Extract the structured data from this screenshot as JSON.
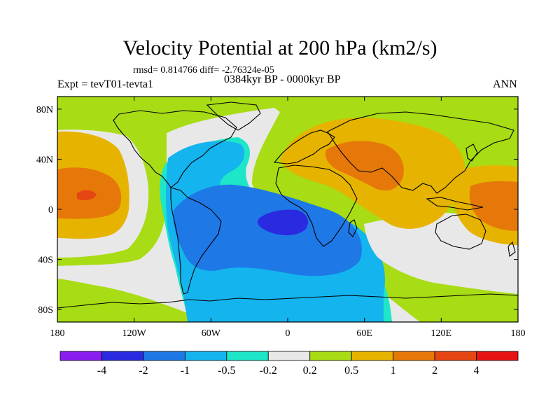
{
  "title": "Velocity Potential at 200 hPa (km2/s)",
  "stats_line": "rmsd= 0.814766 diff= -2.76324e-05",
  "period_line": "0384kyr BP - 0000kyr BP",
  "experiment_label": "Expt = tevT01-tevta1",
  "season_label": "ANN",
  "chart_data": {
    "type": "contour-map",
    "title": "Velocity Potential at 200 hPa (km2/s)",
    "xlim": [
      -180,
      180
    ],
    "ylim": [
      -90,
      90
    ],
    "x_ticks": [
      {
        "value": -180,
        "label": "180"
      },
      {
        "value": -120,
        "label": "120W"
      },
      {
        "value": -60,
        "label": "60W"
      },
      {
        "value": 0,
        "label": "0"
      },
      {
        "value": 60,
        "label": "60E"
      },
      {
        "value": 120,
        "label": "120E"
      },
      {
        "value": 180,
        "label": "180"
      }
    ],
    "y_ticks": [
      {
        "value": 80,
        "label": "80N"
      },
      {
        "value": 40,
        "label": "40N"
      },
      {
        "value": 0,
        "label": "0"
      },
      {
        "value": -40,
        "label": "40S"
      },
      {
        "value": -80,
        "label": "80S"
      }
    ],
    "contour_levels": [
      "-4",
      "-2",
      "-1",
      "-0.5",
      "-0.2",
      "0.2",
      "0.5",
      "1",
      "2",
      "4"
    ],
    "colorbar_colors": [
      "#8a1ef0",
      "#2a2ae0",
      "#1e78e6",
      "#14b4ee",
      "#1ee6c8",
      "#e8e8e8",
      "#a8dc14",
      "#e6b400",
      "#e6780a",
      "#e64614",
      "#e61414"
    ],
    "regions": [
      {
        "name": "background",
        "level": "0.2 to 0.5",
        "color_index": 6
      },
      {
        "name": "atlantic-band",
        "level": "-0.2 to 0.2",
        "color_index": 5
      },
      {
        "name": "americas-atlantic-low",
        "level": "-0.5 to -0.2",
        "color_index": 4
      },
      {
        "name": "atlantic-africa-low",
        "level": "-1 to -0.5",
        "color_index": 3
      },
      {
        "name": "central-low",
        "level": "-2 to -1",
        "color_index": 2
      },
      {
        "name": "central-min",
        "level": "-4 to -2",
        "color_index": 1
      },
      {
        "name": "pacific-west-band",
        "level": "-0.2 to 0.2",
        "color_index": 5
      },
      {
        "name": "pacific-west-high",
        "level": "0.5 to 1",
        "color_index": 7
      },
      {
        "name": "pacific-west-max",
        "level": "1 to 2",
        "color_index": 8
      },
      {
        "name": "pacific-west-peak",
        "level": "2 to 4",
        "color_index": 9
      },
      {
        "name": "indian-australia-band",
        "level": "-0.2 to 0.2",
        "color_index": 5
      },
      {
        "name": "asia-high",
        "level": "0.5 to 1",
        "color_index": 7
      },
      {
        "name": "asia-max",
        "level": "1 to 2",
        "color_index": 8
      },
      {
        "name": "pacific-east-high",
        "level": "0.5 to 1",
        "color_index": 7
      },
      {
        "name": "pacific-east-max",
        "level": "1 to 2",
        "color_index": 8
      }
    ]
  }
}
